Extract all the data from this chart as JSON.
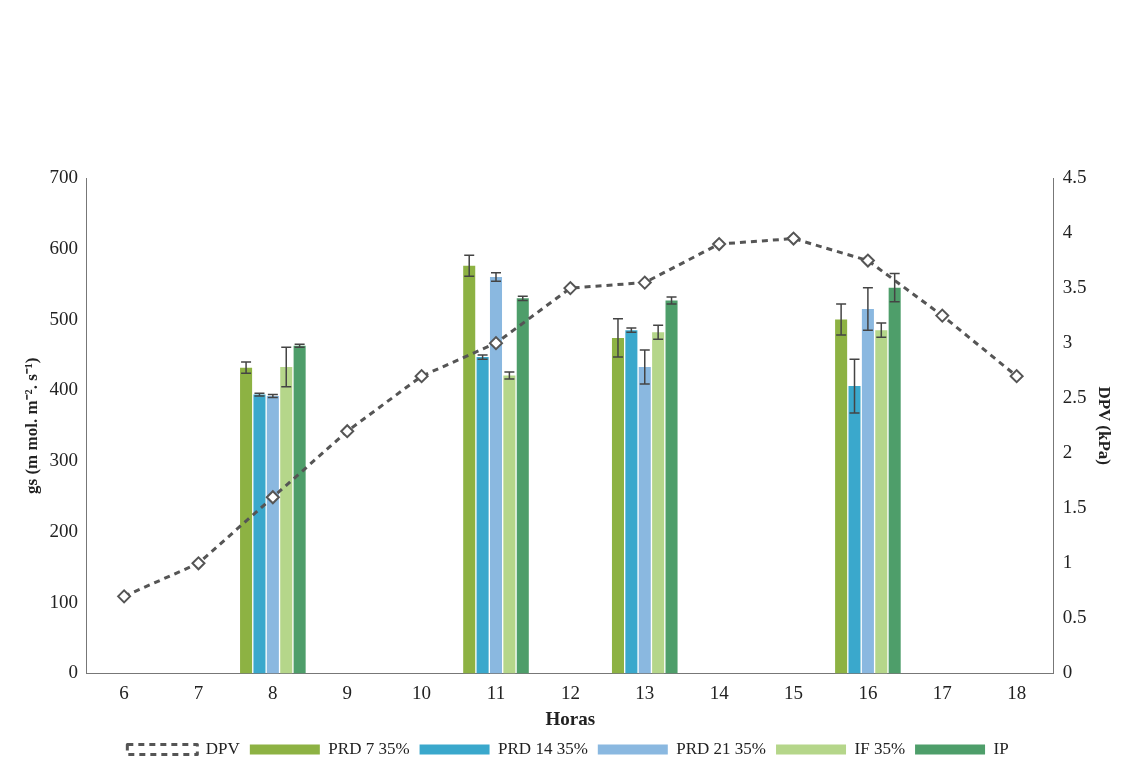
{
  "chart_data": {
    "type": "bar",
    "xlabel": "Horas",
    "ylabel": "gs (m mol. m⁻². s⁻¹)",
    "y2label": "DPV (kPa)",
    "categories": [
      "6",
      "7",
      "8",
      "9",
      "10",
      "11",
      "12",
      "13",
      "14",
      "15",
      "16",
      "17",
      "18"
    ],
    "ylim": [
      0,
      700
    ],
    "yticks": [
      0,
      100,
      200,
      300,
      400,
      500,
      600,
      700
    ],
    "y2lim": [
      0,
      4.5
    ],
    "y2ticks": [
      0,
      0.5,
      1,
      1.5,
      2,
      2.5,
      3,
      3.5,
      4,
      4.5
    ],
    "grid": false,
    "legend": "bottom",
    "series": [
      {
        "name": "PRD 7 35%",
        "color": "#8db243",
        "values": [
          null,
          null,
          432,
          null,
          null,
          576,
          null,
          474,
          null,
          null,
          500,
          null,
          null
        ],
        "errors": [
          null,
          null,
          8,
          null,
          null,
          15,
          null,
          27,
          null,
          null,
          22,
          null,
          null
        ]
      },
      {
        "name": "PRD 14 35%",
        "color": "#3aa8cc",
        "values": [
          null,
          null,
          394,
          null,
          null,
          447,
          null,
          485,
          null,
          null,
          406,
          null,
          null
        ],
        "errors": [
          null,
          null,
          2,
          null,
          null,
          3,
          null,
          3,
          null,
          null,
          38,
          null,
          null
        ]
      },
      {
        "name": "PRD 21 35%",
        "color": "#8ab8e0",
        "values": [
          null,
          null,
          392,
          null,
          null,
          560,
          null,
          433,
          null,
          null,
          515,
          null,
          null
        ],
        "errors": [
          null,
          null,
          2,
          null,
          null,
          6,
          null,
          24,
          null,
          null,
          30,
          null,
          null
        ]
      },
      {
        "name": "IF 35%",
        "color": "#b5d68a",
        "values": [
          null,
          null,
          433,
          null,
          null,
          421,
          null,
          482,
          null,
          null,
          485,
          null,
          null
        ],
        "errors": [
          null,
          null,
          28,
          null,
          null,
          5,
          null,
          10,
          null,
          null,
          10,
          null,
          null
        ]
      },
      {
        "name": "IP",
        "color": "#4e9e6a",
        "values": [
          null,
          null,
          463,
          null,
          null,
          530,
          null,
          527,
          null,
          null,
          545,
          null,
          null
        ],
        "errors": [
          null,
          null,
          2,
          null,
          null,
          3,
          null,
          5,
          null,
          null,
          20,
          null,
          null
        ]
      },
      {
        "name": "DPV",
        "type": "line",
        "axis": "y2",
        "color": "#555555",
        "marker": "diamond",
        "line_style": "dashed",
        "values": [
          0.7,
          1.0,
          1.6,
          2.2,
          2.7,
          3.0,
          3.5,
          3.55,
          3.9,
          3.95,
          3.75,
          3.25,
          2.7
        ]
      }
    ]
  }
}
